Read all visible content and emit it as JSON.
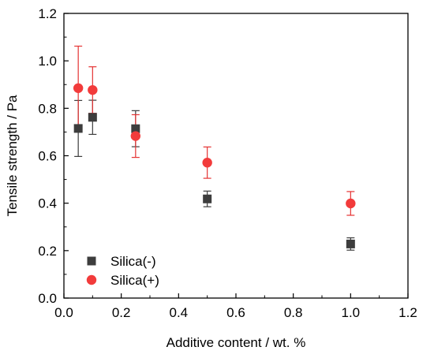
{
  "chart_data": {
    "type": "scatter",
    "xlabel": "Additive content / wt. %",
    "ylabel": "Tensile strength / Pa",
    "xlim": [
      0.0,
      1.2
    ],
    "ylim": [
      0.0,
      1.2
    ],
    "x_ticks": [
      0.0,
      0.2,
      0.4,
      0.6,
      0.8,
      1.0,
      1.2
    ],
    "y_ticks": [
      0.0,
      0.2,
      0.4,
      0.6,
      0.8,
      1.0,
      1.2
    ],
    "x_tick_labels": [
      "0.0",
      "0.2",
      "0.4",
      "0.6",
      "0.8",
      "1.0",
      "1.2"
    ],
    "y_tick_labels": [
      "0.0",
      "0.2",
      "0.4",
      "0.6",
      "0.8",
      "1.0",
      "1.2"
    ],
    "grid": false,
    "legend_position": "bottom-left",
    "series": [
      {
        "name": "Silica(-)",
        "marker": "square",
        "color": "#3d3d3d",
        "error_color": "#3d3d3d",
        "x": [
          0.05,
          0.1,
          0.25,
          0.5,
          1.0
        ],
        "y": [
          0.715,
          0.762,
          0.714,
          0.418,
          0.228
        ],
        "error": [
          0.118,
          0.072,
          0.076,
          0.033,
          0.026
        ]
      },
      {
        "name": "Silica(+)",
        "marker": "circle",
        "color": "#f23b3b",
        "error_color": "#e53333",
        "x": [
          0.05,
          0.1,
          0.25,
          0.5,
          1.0
        ],
        "y": [
          0.885,
          0.877,
          0.683,
          0.571,
          0.399
        ],
        "error": [
          0.177,
          0.098,
          0.09,
          0.066,
          0.05
        ]
      }
    ]
  }
}
